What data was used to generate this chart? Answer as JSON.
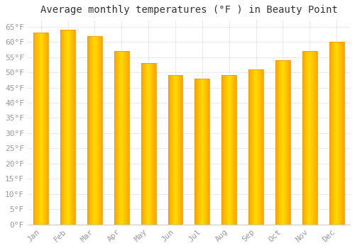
{
  "title": "Average monthly temperatures (°F ) in Beauty Point",
  "months": [
    "Jan",
    "Feb",
    "Mar",
    "Apr",
    "May",
    "Jun",
    "Jul",
    "Aug",
    "Sep",
    "Oct",
    "Nov",
    "Dec"
  ],
  "values": [
    63,
    64,
    62,
    57,
    53,
    49,
    48,
    49,
    51,
    54,
    57,
    60
  ],
  "bar_color_main": "#FFA500",
  "bar_color_light": "#FFD050",
  "bar_color_dark": "#E89000",
  "background_color": "#FFFFFF",
  "plot_bg_color": "#FFFFFF",
  "grid_color": "#E0E0E0",
  "ylim": [
    0,
    67
  ],
  "yticks": [
    0,
    5,
    10,
    15,
    20,
    25,
    30,
    35,
    40,
    45,
    50,
    55,
    60,
    65
  ],
  "title_fontsize": 10,
  "tick_fontsize": 8,
  "font_color": "#999999",
  "title_color": "#333333",
  "bar_width": 0.55
}
